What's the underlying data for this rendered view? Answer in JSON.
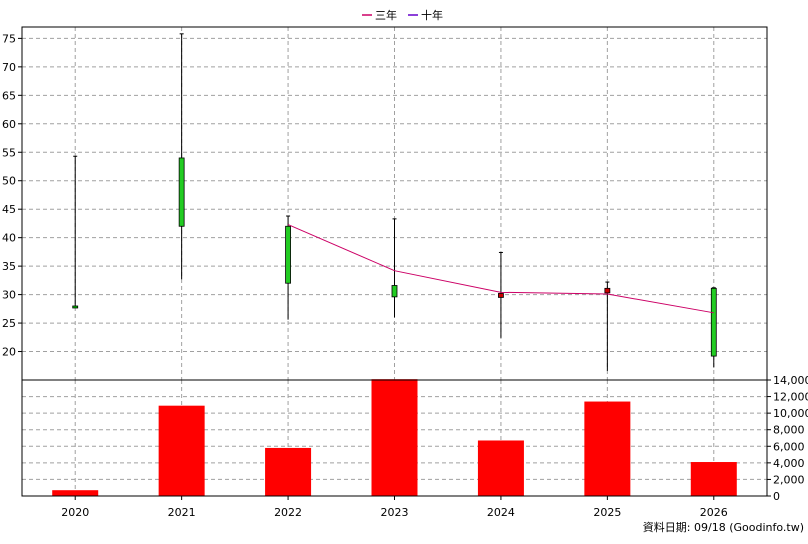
{
  "legend": [
    {
      "label": "三年",
      "color": "#cc0066"
    },
    {
      "label": "十年",
      "color": "#6600cc"
    }
  ],
  "footer": "資料日期: 09/18  (Goodinfo.tw)",
  "chart_data": [
    {
      "type": "candlestick",
      "categories": [
        "2020",
        "2021",
        "2022",
        "2023",
        "2024",
        "2025",
        "2026"
      ],
      "ylim": [
        15,
        77
      ],
      "yticks": [
        20,
        25,
        30,
        35,
        40,
        45,
        50,
        55,
        60,
        65,
        70,
        75
      ],
      "grid": true,
      "candles": [
        {
          "open": 28.0,
          "close": 28.0,
          "high": 54.3,
          "low": 27.8,
          "color": "#00cc00"
        },
        {
          "open": 42.0,
          "close": 54.0,
          "high": 75.8,
          "low": 32.7,
          "color": "#22cc22"
        },
        {
          "open": 32.0,
          "close": 42.0,
          "high": 43.8,
          "low": 25.6,
          "color": "#22cc22"
        },
        {
          "open": 29.6,
          "close": 31.6,
          "high": 43.3,
          "low": 26.0,
          "color": "#22cc22"
        },
        {
          "open": 29.5,
          "close": 30.2,
          "high": 37.4,
          "low": 22.4,
          "color": "#cc0000"
        },
        {
          "open": 30.3,
          "close": 31.1,
          "high": 32.2,
          "low": 16.6,
          "color": "#cc0000"
        },
        {
          "open": 19.2,
          "close": 31.1,
          "high": 31.2,
          "low": 17.2,
          "color": "#22cc22"
        }
      ],
      "series": [
        {
          "name": "三年",
          "x": [
            "2022",
            "2023",
            "2024",
            "2025",
            "2026"
          ],
          "values": [
            42.3,
            34.2,
            30.4,
            30.1,
            26.8
          ],
          "color": "#cc0066"
        }
      ]
    },
    {
      "type": "bar",
      "categories": [
        "2020",
        "2021",
        "2022",
        "2023",
        "2024",
        "2025",
        "2026"
      ],
      "values": [
        700,
        10900,
        5800,
        14100,
        6700,
        11400,
        4100
      ],
      "ylim": [
        0,
        14000
      ],
      "yticks": [
        0,
        2000,
        4000,
        6000,
        8000,
        10000,
        12000,
        14000
      ],
      "yticklabels": [
        "0",
        "2,000",
        "4,000",
        "6,000",
        "8,000",
        "10,000",
        "12,000",
        "14,000"
      ],
      "color": "#ff0000"
    }
  ]
}
